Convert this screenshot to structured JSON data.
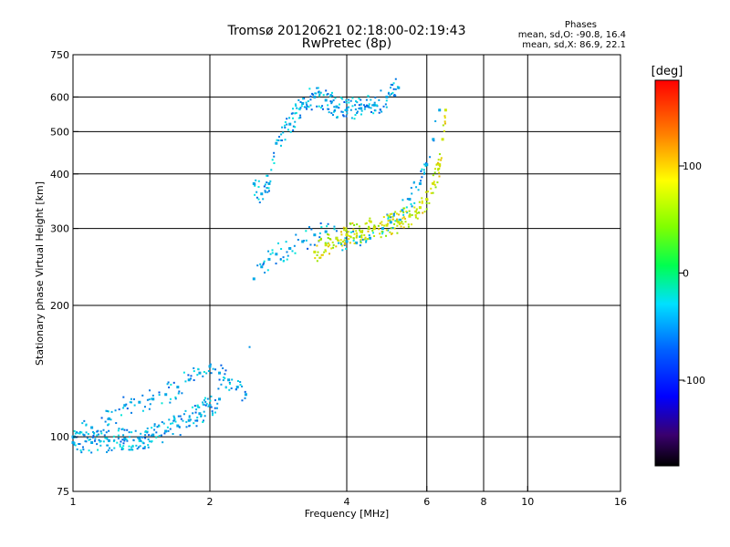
{
  "header": {
    "title_line1": "Tromsø 20120621 02:18:00-02:19:43",
    "title_line2": "RwPretec (8p)"
  },
  "phases": {
    "label": "Phases",
    "o_mode": "mean, sd,O: -90.8, 16.4",
    "x_mode": "mean, sd,X:  86.9, 22.1"
  },
  "colorbar": {
    "unit": "[deg]",
    "range": [
      -180,
      180
    ],
    "ticks": [
      {
        "value": 100,
        "label": "100"
      },
      {
        "value": 0,
        "label": "0"
      },
      {
        "value": -100,
        "label": "-100"
      }
    ]
  },
  "chart_data": {
    "type": "scatter",
    "title": "Tromsø 20120621 02:18:00-02:19:43",
    "subtitle": "RwPretec (8p)",
    "xlabel": "Frequency [MHz]",
    "ylabel": "Stationary phase Virtual Height [km]",
    "xscale": "log",
    "yscale": "log",
    "xlim": [
      1,
      16
    ],
    "ylim": [
      75,
      750
    ],
    "x_ticks": [
      1,
      2,
      4,
      6,
      8,
      10,
      16
    ],
    "x_tick_labels": [
      "1",
      "2",
      "4",
      "6",
      "8",
      "10",
      "16"
    ],
    "y_ticks": [
      75,
      100,
      200,
      300,
      400,
      500,
      600,
      750
    ],
    "y_tick_labels": [
      "75",
      "100",
      "200",
      "300",
      "400",
      "500",
      "600",
      "750"
    ],
    "x_grid": [
      2,
      4,
      6,
      8,
      10
    ],
    "y_grid": [
      100,
      200,
      300,
      400,
      500,
      600
    ],
    "grid": true,
    "series": [
      {
        "mode": "O",
        "phase_mean": -90.8,
        "x": [
          1.0,
          1.1,
          1.2,
          1.3,
          1.4,
          1.5,
          1.6,
          1.7,
          1.8,
          1.9,
          2.0,
          2.1,
          2.2,
          2.3,
          2.4,
          2.5,
          2.6,
          2.7,
          2.8,
          3.0,
          3.2,
          3.4,
          3.6,
          3.8,
          4.0,
          4.2,
          4.5,
          4.8,
          5.0,
          5.3,
          5.5,
          5.8,
          6.0,
          6.2,
          6.4
        ],
        "y": [
          100,
          105,
          110,
          118,
          120,
          122,
          125,
          130,
          135,
          140,
          145,
          140,
          135,
          130,
          125,
          230,
          245,
          255,
          262,
          270,
          280,
          290,
          295,
          285,
          280,
          278,
          285,
          300,
          310,
          330,
          350,
          380,
          420,
          480,
          560
        ]
      },
      {
        "mode": "O-lower",
        "phase_mean": -90.8,
        "x": [
          1.0,
          1.1,
          1.2,
          1.3,
          1.4,
          1.5,
          1.6,
          1.7,
          1.8,
          1.9,
          2.0,
          2.1
        ],
        "y": [
          97,
          97,
          98,
          99,
          99,
          101,
          103,
          106,
          109,
          113,
          118,
          122
        ]
      },
      {
        "mode": "O-upper",
        "phase_mean": -90.8,
        "x": [
          2.5,
          2.6,
          2.7,
          2.8,
          3.0,
          3.2,
          3.4,
          3.6,
          3.8,
          4.0,
          4.3,
          4.6,
          4.9,
          5.2
        ],
        "y": [
          380,
          360,
          380,
          470,
          520,
          580,
          600,
          590,
          570,
          560,
          565,
          575,
          600,
          630
        ]
      },
      {
        "mode": "X",
        "phase_mean": 86.9,
        "x": [
          3.4,
          3.6,
          3.8,
          4.0,
          4.3,
          4.6,
          4.9,
          5.2,
          5.5,
          5.8,
          6.0,
          6.2,
          6.4,
          6.5,
          6.6
        ],
        "y": [
          265,
          275,
          285,
          290,
          295,
          300,
          305,
          310,
          320,
          335,
          350,
          380,
          420,
          480,
          560
        ]
      }
    ],
    "colorbar_label": "[deg]"
  }
}
